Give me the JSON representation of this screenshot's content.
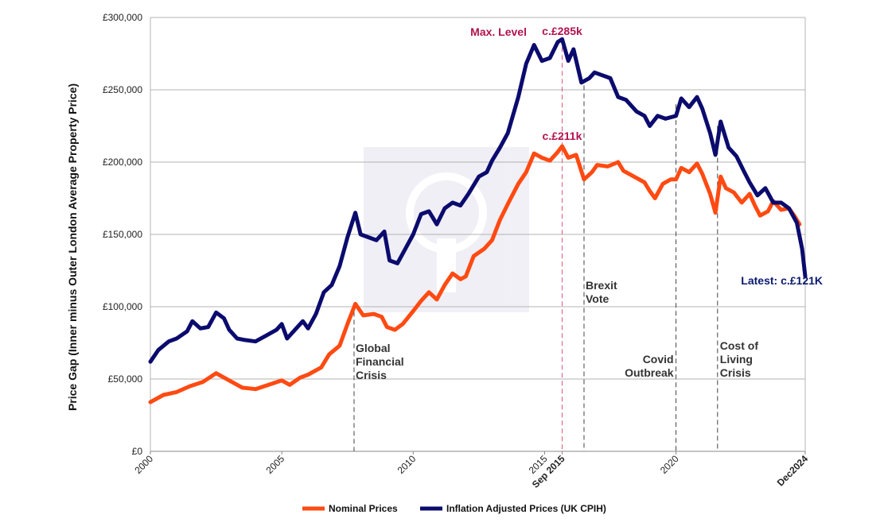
{
  "chart_data": {
    "type": "line",
    "title": "",
    "ylabel": "Price Gap (Inner minus Outer London Average Property Price)",
    "xlabel": "",
    "x_range": [
      2000.0,
      2024.917
    ],
    "ylim": [
      0,
      300000
    ],
    "y_ticks": [
      {
        "value": 0,
        "label": "£0"
      },
      {
        "value": 50000,
        "label": "£50,000"
      },
      {
        "value": 100000,
        "label": "£100,000"
      },
      {
        "value": 150000,
        "label": "£150,000"
      },
      {
        "value": 200000,
        "label": "£200,000"
      },
      {
        "value": 250000,
        "label": "£250,000"
      },
      {
        "value": 300000,
        "label": "£300,000"
      }
    ],
    "x_ticks": [
      {
        "value": 2000,
        "label": "2000",
        "bold": false
      },
      {
        "value": 2005,
        "label": "2005",
        "bold": false
      },
      {
        "value": 2010,
        "label": "2010",
        "bold": false
      },
      {
        "value": 2015,
        "label": "2015",
        "bold": false
      },
      {
        "value": 2015.667,
        "label": "Sep 2015",
        "bold": true
      },
      {
        "value": 2020,
        "label": "2020",
        "bold": false
      },
      {
        "value": 2024.917,
        "label": "Dec2024",
        "bold": true
      }
    ],
    "grid": true,
    "legend_position": "bottom",
    "series": [
      {
        "name": "Nominal Prices",
        "color": "#ff4a12",
        "points": [
          [
            2000.0,
            34000
          ],
          [
            2000.5,
            39000
          ],
          [
            2001.0,
            41000
          ],
          [
            2001.5,
            45000
          ],
          [
            2002.0,
            48000
          ],
          [
            2002.5,
            54000
          ],
          [
            2003.0,
            49000
          ],
          [
            2003.5,
            44000
          ],
          [
            2004.0,
            43000
          ],
          [
            2004.5,
            46000
          ],
          [
            2005.0,
            49000
          ],
          [
            2005.3,
            46000
          ],
          [
            2005.7,
            51000
          ],
          [
            2006.0,
            53000
          ],
          [
            2006.5,
            58000
          ],
          [
            2006.8,
            67000
          ],
          [
            2007.2,
            73000
          ],
          [
            2007.5,
            88000
          ],
          [
            2007.8,
            102000
          ],
          [
            2008.1,
            94000
          ],
          [
            2008.5,
            95000
          ],
          [
            2008.8,
            93000
          ],
          [
            2009.0,
            86000
          ],
          [
            2009.3,
            84000
          ],
          [
            2009.6,
            88000
          ],
          [
            2010.0,
            97000
          ],
          [
            2010.3,
            104000
          ],
          [
            2010.6,
            110000
          ],
          [
            2010.9,
            105000
          ],
          [
            2011.2,
            115000
          ],
          [
            2011.5,
            123000
          ],
          [
            2011.8,
            119000
          ],
          [
            2012.0,
            121000
          ],
          [
            2012.3,
            135000
          ],
          [
            2012.7,
            140000
          ],
          [
            2013.0,
            146000
          ],
          [
            2013.3,
            160000
          ],
          [
            2013.6,
            171000
          ],
          [
            2014.0,
            185000
          ],
          [
            2014.3,
            193000
          ],
          [
            2014.6,
            206000
          ],
          [
            2014.9,
            203000
          ],
          [
            2015.2,
            201000
          ],
          [
            2015.5,
            207000
          ],
          [
            2015.667,
            211000
          ],
          [
            2015.9,
            203000
          ],
          [
            2016.2,
            205000
          ],
          [
            2016.5,
            188000
          ],
          [
            2016.8,
            193000
          ],
          [
            2017.0,
            198000
          ],
          [
            2017.4,
            197000
          ],
          [
            2017.8,
            200000
          ],
          [
            2018.0,
            194000
          ],
          [
            2018.4,
            190000
          ],
          [
            2018.8,
            186000
          ],
          [
            2019.0,
            180000
          ],
          [
            2019.2,
            175000
          ],
          [
            2019.5,
            185000
          ],
          [
            2019.8,
            188000
          ],
          [
            2020.0,
            188000
          ],
          [
            2020.2,
            196000
          ],
          [
            2020.5,
            193000
          ],
          [
            2020.8,
            199000
          ],
          [
            2021.0,
            192000
          ],
          [
            2021.3,
            178000
          ],
          [
            2021.5,
            165000
          ],
          [
            2021.7,
            190000
          ],
          [
            2021.9,
            182000
          ],
          [
            2022.2,
            179000
          ],
          [
            2022.5,
            172000
          ],
          [
            2022.8,
            178000
          ],
          [
            2023.0,
            170000
          ],
          [
            2023.2,
            163000
          ],
          [
            2023.5,
            166000
          ],
          [
            2023.7,
            173000
          ],
          [
            2024.0,
            167000
          ],
          [
            2024.3,
            168000
          ],
          [
            2024.5,
            163000
          ],
          [
            2024.7,
            157000
          ]
        ]
      },
      {
        "name": "Inflation Adjusted Prices (UK CPIH)",
        "color": "#0b0b6e",
        "points": [
          [
            2000.0,
            62000
          ],
          [
            2000.3,
            70000
          ],
          [
            2000.7,
            76000
          ],
          [
            2001.0,
            78000
          ],
          [
            2001.4,
            83000
          ],
          [
            2001.6,
            90000
          ],
          [
            2001.9,
            85000
          ],
          [
            2002.2,
            86000
          ],
          [
            2002.5,
            96000
          ],
          [
            2002.8,
            92000
          ],
          [
            2003.0,
            84000
          ],
          [
            2003.3,
            78000
          ],
          [
            2003.6,
            77000
          ],
          [
            2004.0,
            76000
          ],
          [
            2004.4,
            80000
          ],
          [
            2004.8,
            84000
          ],
          [
            2005.0,
            88000
          ],
          [
            2005.2,
            78000
          ],
          [
            2005.5,
            84000
          ],
          [
            2005.8,
            90000
          ],
          [
            2006.0,
            85000
          ],
          [
            2006.3,
            95000
          ],
          [
            2006.6,
            110000
          ],
          [
            2006.9,
            115000
          ],
          [
            2007.2,
            128000
          ],
          [
            2007.5,
            148000
          ],
          [
            2007.8,
            165000
          ],
          [
            2008.0,
            150000
          ],
          [
            2008.3,
            148000
          ],
          [
            2008.6,
            146000
          ],
          [
            2008.9,
            152000
          ],
          [
            2009.1,
            132000
          ],
          [
            2009.4,
            130000
          ],
          [
            2009.7,
            140000
          ],
          [
            2010.0,
            150000
          ],
          [
            2010.3,
            164000
          ],
          [
            2010.6,
            166000
          ],
          [
            2010.9,
            157000
          ],
          [
            2011.2,
            168000
          ],
          [
            2011.5,
            172000
          ],
          [
            2011.8,
            170000
          ],
          [
            2012.1,
            178000
          ],
          [
            2012.5,
            190000
          ],
          [
            2012.8,
            193000
          ],
          [
            2013.0,
            201000
          ],
          [
            2013.3,
            210000
          ],
          [
            2013.6,
            220000
          ],
          [
            2014.0,
            245000
          ],
          [
            2014.3,
            268000
          ],
          [
            2014.6,
            281000
          ],
          [
            2014.9,
            270000
          ],
          [
            2015.2,
            272000
          ],
          [
            2015.5,
            283000
          ],
          [
            2015.667,
            285000
          ],
          [
            2015.9,
            270000
          ],
          [
            2016.1,
            278000
          ],
          [
            2016.4,
            255000
          ],
          [
            2016.7,
            258000
          ],
          [
            2016.9,
            262000
          ],
          [
            2017.2,
            260000
          ],
          [
            2017.5,
            258000
          ],
          [
            2017.8,
            245000
          ],
          [
            2018.1,
            243000
          ],
          [
            2018.5,
            235000
          ],
          [
            2018.8,
            232000
          ],
          [
            2019.0,
            225000
          ],
          [
            2019.3,
            232000
          ],
          [
            2019.6,
            230000
          ],
          [
            2020.0,
            232000
          ],
          [
            2020.2,
            244000
          ],
          [
            2020.5,
            238000
          ],
          [
            2020.8,
            245000
          ],
          [
            2021.0,
            237000
          ],
          [
            2021.3,
            220000
          ],
          [
            2021.5,
            205000
          ],
          [
            2021.7,
            228000
          ],
          [
            2022.0,
            210000
          ],
          [
            2022.3,
            204000
          ],
          [
            2022.6,
            193000
          ],
          [
            2022.8,
            186000
          ],
          [
            2023.1,
            177000
          ],
          [
            2023.4,
            182000
          ],
          [
            2023.7,
            172000
          ],
          [
            2024.0,
            172000
          ],
          [
            2024.3,
            168000
          ],
          [
            2024.6,
            158000
          ],
          [
            2024.8,
            140000
          ],
          [
            2024.917,
            121000
          ]
        ]
      }
    ],
    "annotations": {
      "max_label": "Max. Level",
      "nominal_peak": "c.£211k",
      "real_peak": "c.£285k",
      "latest": "Latest: c.£121K",
      "events": [
        {
          "x": 2007.75,
          "lines": [
            "Global",
            "Financial",
            "Crisis"
          ]
        },
        {
          "x": 2016.5,
          "lines": [
            "Brexit",
            "Vote"
          ]
        },
        {
          "x": 2020.0,
          "lines": [
            "Covid",
            "Outbreak"
          ]
        },
        {
          "x": 2021.58,
          "lines": [
            "Cost of",
            "Living",
            "Crisis"
          ]
        }
      ]
    },
    "colors": {
      "highlight": "#b3124f",
      "watermark": "#e6e6f0"
    }
  }
}
